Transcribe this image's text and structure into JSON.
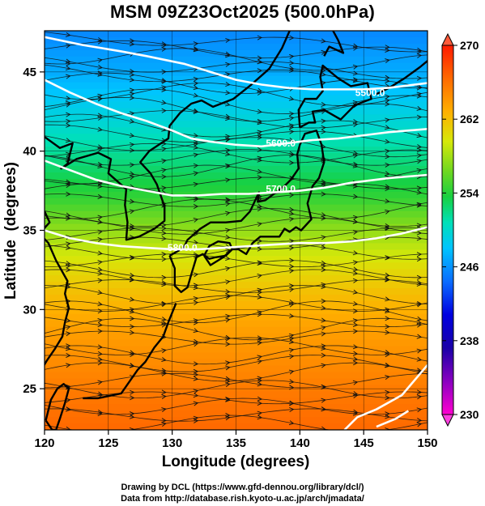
{
  "title": "MSM 09Z23Oct2025 (500.0hPa)",
  "chart_data": {
    "type": "heatmap",
    "variable_description": "500 hPa temperature shading with geopotential height contours and wind streamlines",
    "xlabel": "Longitude (degrees)",
    "ylabel": "Latitude  (degrees)",
    "xlim": [
      120,
      150
    ],
    "ylim": [
      22.4,
      47.6
    ],
    "x_ticks": [
      120,
      125,
      130,
      135,
      140,
      145,
      150
    ],
    "y_ticks": [
      25,
      30,
      35,
      40,
      45
    ],
    "x_tick_labels": [
      "120",
      "125",
      "130",
      "135",
      "140",
      "145",
      "150"
    ],
    "y_tick_labels": [
      "25",
      "30",
      "35",
      "40",
      "45"
    ],
    "grid": true,
    "colorbar": {
      "min": 230,
      "max": 270,
      "tick_values": [
        230,
        238,
        246,
        254,
        262,
        270
      ],
      "tick_labels": [
        "230",
        "238",
        "246",
        "254",
        "262",
        "270"
      ],
      "placement": "right"
    },
    "temperature_profile": [
      {
        "lat": 47.6,
        "value": 245.5
      },
      {
        "lat": 45,
        "value": 247
      },
      {
        "lat": 42,
        "value": 249.5
      },
      {
        "lat": 39,
        "value": 252.5
      },
      {
        "lat": 37,
        "value": 254.5
      },
      {
        "lat": 35,
        "value": 257.5
      },
      {
        "lat": 33,
        "value": 260
      },
      {
        "lat": 31,
        "value": 262
      },
      {
        "lat": 29,
        "value": 263.5
      },
      {
        "lat": 27,
        "value": 264.5
      },
      {
        "lat": 25,
        "value": 265.5
      },
      {
        "lat": 22.4,
        "value": 266.5
      }
    ],
    "contours": [
      {
        "label": "5500.0",
        "points": [
          [
            120,
            47.2
          ],
          [
            123,
            46.7
          ],
          [
            126,
            46.3
          ],
          [
            128,
            46
          ],
          [
            131,
            45.5
          ],
          [
            133,
            45
          ],
          [
            135,
            44.5
          ],
          [
            137,
            44.2
          ],
          [
            139,
            44
          ],
          [
            141,
            43.9
          ],
          [
            143,
            43.9
          ],
          [
            145,
            43.9
          ],
          [
            147,
            44
          ],
          [
            150,
            44.3
          ]
        ],
        "label_at": [
          145.5,
          43.7
        ]
      },
      {
        "label": "5600.0",
        "points": [
          [
            120,
            44.5
          ],
          [
            122,
            43.7
          ],
          [
            124,
            43
          ],
          [
            126,
            42.4
          ],
          [
            128,
            41.9
          ],
          [
            130,
            41.3
          ],
          [
            131.5,
            40.8
          ],
          [
            133,
            40.6
          ],
          [
            135,
            40.4
          ],
          [
            137,
            40.3
          ],
          [
            139,
            40.5
          ],
          [
            141,
            40.7
          ],
          [
            143,
            40.8
          ],
          [
            145,
            41
          ],
          [
            147,
            41.2
          ],
          [
            150,
            41.4
          ]
        ],
        "label_at": [
          138.5,
          40.5
        ]
      },
      {
        "label": "5700.0",
        "points": [
          [
            120,
            39.4
          ],
          [
            122,
            38.8
          ],
          [
            124,
            38.2
          ],
          [
            126,
            37.8
          ],
          [
            128,
            37.5
          ],
          [
            130,
            37.2
          ],
          [
            132,
            37.2
          ],
          [
            134,
            37.3
          ],
          [
            136,
            37.3
          ],
          [
            138,
            37.4
          ],
          [
            140,
            37.5
          ],
          [
            142,
            37.7
          ],
          [
            144,
            38
          ],
          [
            147,
            38.3
          ],
          [
            150,
            38.5
          ]
        ],
        "label_at": [
          138.5,
          37.6
        ]
      },
      {
        "label": "5800.0",
        "points": [
          [
            120,
            35
          ],
          [
            122,
            34.5
          ],
          [
            124,
            34.2
          ],
          [
            126,
            34
          ],
          [
            128,
            33.9
          ],
          [
            130,
            33.8
          ],
          [
            132,
            33.8
          ],
          [
            134,
            33.9
          ],
          [
            136,
            34
          ],
          [
            138,
            34.1
          ],
          [
            140,
            34.2
          ],
          [
            142,
            34.2
          ],
          [
            144,
            34.3
          ],
          [
            146,
            34.5
          ],
          [
            148,
            34.8
          ],
          [
            150,
            35.2
          ]
        ],
        "label_at": [
          130.8,
          33.9
        ]
      },
      {
        "label": "",
        "points": [
          [
            143.5,
            22.4
          ],
          [
            144.5,
            23.2
          ],
          [
            146,
            23.7
          ],
          [
            148,
            24.6
          ],
          [
            150,
            26.5
          ]
        ],
        "label_at": null
      },
      {
        "label": "",
        "points": [
          [
            146,
            22.6
          ],
          [
            147.5,
            23.1
          ],
          [
            148.5,
            23.6
          ]
        ],
        "label_at": null
      }
    ]
  },
  "credits": {
    "line1": "Drawing by DCL (https://www.gfd-dennou.org/library/dcl/)",
    "line2": "Data from http://database.rish.kyoto-u.ac.jp/arch/jmadata/"
  },
  "colors": {
    "background": "#ffffff",
    "contour": "#ffffff",
    "coast": "#000000",
    "streamline": "#111111"
  }
}
